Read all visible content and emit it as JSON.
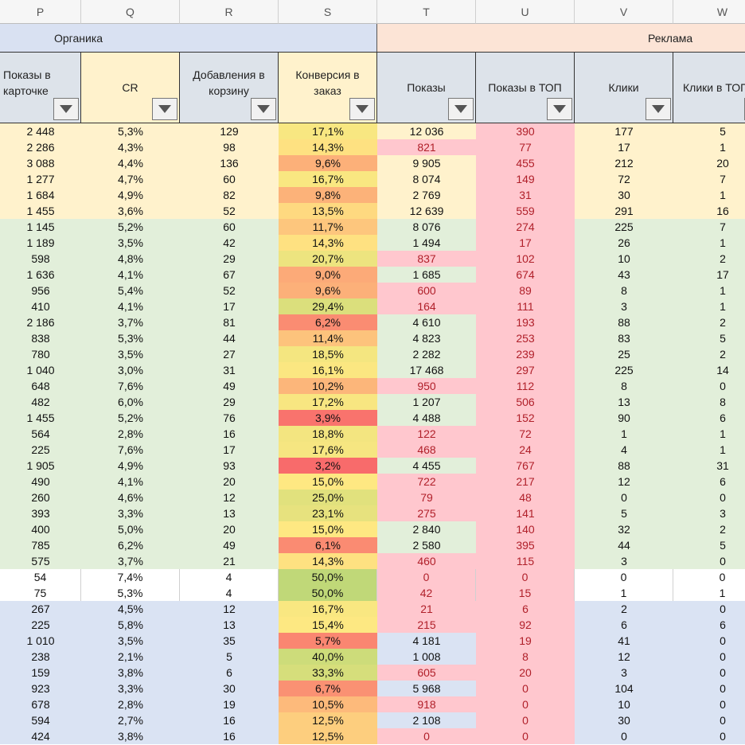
{
  "columns": [
    "P",
    "Q",
    "R",
    "S",
    "T",
    "U",
    "V",
    "W"
  ],
  "groups": [
    {
      "label": "Органика",
      "bg": "#d9e1f2"
    },
    {
      "label": "Реклама",
      "bg": "#fce4d6"
    }
  ],
  "headers": [
    {
      "label": "Показы в карточке",
      "bg": "#dde3ea"
    },
    {
      "label": "CR",
      "bg": "#fff2cc"
    },
    {
      "label": "Добавления в корзину",
      "bg": "#dde3ea"
    },
    {
      "label": "Конверсия в заказ",
      "bg": "#fff2cc"
    },
    {
      "label": "Показы",
      "bg": "#dde3ea"
    },
    {
      "label": "Показы в ТОП",
      "bg": "#dde3ea"
    },
    {
      "label": "Клики",
      "bg": "#dde3ea"
    },
    {
      "label": "Клики в ТОП",
      "bg": "#dde3ea"
    }
  ],
  "palette": {
    "yellow": "#fff2cc",
    "green": "#e2efda",
    "blue": "#dae3f3",
    "white": "#ffffff",
    "pink": "#ffc7ce",
    "neg_text": "#b0202a"
  },
  "rows": [
    {
      "g": "yellow",
      "v": [
        "2 448",
        "5,3%",
        "129",
        "17,1%",
        "12 036",
        "390",
        "177",
        "5"
      ],
      "t": 0,
      "u": 1
    },
    {
      "g": "yellow",
      "v": [
        "2 286",
        "4,3%",
        "98",
        "14,3%",
        "821",
        "77",
        "17",
        "1"
      ],
      "t": 1,
      "u": 1
    },
    {
      "g": "yellow",
      "v": [
        "3 088",
        "4,4%",
        "136",
        "9,6%",
        "9 905",
        "455",
        "212",
        "20"
      ],
      "t": 0,
      "u": 1
    },
    {
      "g": "yellow",
      "v": [
        "1 277",
        "4,7%",
        "60",
        "16,7%",
        "8 074",
        "149",
        "72",
        "7"
      ],
      "t": 0,
      "u": 1
    },
    {
      "g": "yellow",
      "v": [
        "1 684",
        "4,9%",
        "82",
        "9,8%",
        "2 769",
        "31",
        "30",
        "1"
      ],
      "t": 0,
      "u": 1
    },
    {
      "g": "yellow",
      "v": [
        "1 455",
        "3,6%",
        "52",
        "13,5%",
        "12 639",
        "559",
        "291",
        "16"
      ],
      "t": 0,
      "u": 1
    },
    {
      "g": "green",
      "v": [
        "1 145",
        "5,2%",
        "60",
        "11,7%",
        "8 076",
        "274",
        "225",
        "7"
      ],
      "t": 0,
      "u": 1
    },
    {
      "g": "green",
      "v": [
        "1 189",
        "3,5%",
        "42",
        "14,3%",
        "1 494",
        "17",
        "26",
        "1"
      ],
      "t": 0,
      "u": 1
    },
    {
      "g": "green",
      "v": [
        "598",
        "4,8%",
        "29",
        "20,7%",
        "837",
        "102",
        "10",
        "2"
      ],
      "t": 1,
      "u": 1
    },
    {
      "g": "green",
      "v": [
        "1 636",
        "4,1%",
        "67",
        "9,0%",
        "1 685",
        "674",
        "43",
        "17"
      ],
      "t": 0,
      "u": 1
    },
    {
      "g": "green",
      "v": [
        "956",
        "5,4%",
        "52",
        "9,6%",
        "600",
        "89",
        "8",
        "1"
      ],
      "t": 1,
      "u": 1
    },
    {
      "g": "green",
      "v": [
        "410",
        "4,1%",
        "17",
        "29,4%",
        "164",
        "111",
        "3",
        "1"
      ],
      "t": 1,
      "u": 1
    },
    {
      "g": "green",
      "v": [
        "2 186",
        "3,7%",
        "81",
        "6,2%",
        "4 610",
        "193",
        "88",
        "2"
      ],
      "t": 0,
      "u": 1
    },
    {
      "g": "green",
      "v": [
        "838",
        "5,3%",
        "44",
        "11,4%",
        "4 823",
        "253",
        "83",
        "5"
      ],
      "t": 0,
      "u": 1
    },
    {
      "g": "green",
      "v": [
        "780",
        "3,5%",
        "27",
        "18,5%",
        "2 282",
        "239",
        "25",
        "2"
      ],
      "t": 0,
      "u": 1
    },
    {
      "g": "green",
      "v": [
        "1 040",
        "3,0%",
        "31",
        "16,1%",
        "17 468",
        "297",
        "225",
        "14"
      ],
      "t": 0,
      "u": 1
    },
    {
      "g": "green",
      "v": [
        "648",
        "7,6%",
        "49",
        "10,2%",
        "950",
        "112",
        "8",
        "0"
      ],
      "t": 1,
      "u": 1
    },
    {
      "g": "green",
      "v": [
        "482",
        "6,0%",
        "29",
        "17,2%",
        "1 207",
        "506",
        "13",
        "8"
      ],
      "t": 0,
      "u": 1
    },
    {
      "g": "green",
      "v": [
        "1 455",
        "5,2%",
        "76",
        "3,9%",
        "4 488",
        "152",
        "90",
        "6"
      ],
      "t": 0,
      "u": 1
    },
    {
      "g": "green",
      "v": [
        "564",
        "2,8%",
        "16",
        "18,8%",
        "122",
        "72",
        "1",
        "1"
      ],
      "t": 1,
      "u": 1
    },
    {
      "g": "green",
      "v": [
        "225",
        "7,6%",
        "17",
        "17,6%",
        "468",
        "24",
        "4",
        "1"
      ],
      "t": 1,
      "u": 1
    },
    {
      "g": "green",
      "v": [
        "1 905",
        "4,9%",
        "93",
        "3,2%",
        "4 455",
        "767",
        "88",
        "31"
      ],
      "t": 0,
      "u": 1
    },
    {
      "g": "green",
      "v": [
        "490",
        "4,1%",
        "20",
        "15,0%",
        "722",
        "217",
        "12",
        "6"
      ],
      "t": 1,
      "u": 1
    },
    {
      "g": "green",
      "v": [
        "260",
        "4,6%",
        "12",
        "25,0%",
        "79",
        "48",
        "0",
        "0"
      ],
      "t": 1,
      "u": 1
    },
    {
      "g": "green",
      "v": [
        "393",
        "3,3%",
        "13",
        "23,1%",
        "275",
        "141",
        "5",
        "3"
      ],
      "t": 1,
      "u": 1
    },
    {
      "g": "green",
      "v": [
        "400",
        "5,0%",
        "20",
        "15,0%",
        "2 840",
        "140",
        "32",
        "2"
      ],
      "t": 0,
      "u": 1
    },
    {
      "g": "green",
      "v": [
        "785",
        "6,2%",
        "49",
        "6,1%",
        "2 580",
        "395",
        "44",
        "5"
      ],
      "t": 0,
      "u": 1
    },
    {
      "g": "green",
      "v": [
        "575",
        "3,7%",
        "21",
        "14,3%",
        "460",
        "115",
        "3",
        "0"
      ],
      "t": 1,
      "u": 1
    },
    {
      "g": "white",
      "v": [
        "54",
        "7,4%",
        "4",
        "50,0%",
        "0",
        "0",
        "0",
        "0"
      ],
      "t": 1,
      "u": 1
    },
    {
      "g": "white",
      "v": [
        "75",
        "5,3%",
        "4",
        "50,0%",
        "42",
        "15",
        "1",
        "1"
      ],
      "t": 1,
      "u": 1
    },
    {
      "g": "blue",
      "v": [
        "267",
        "4,5%",
        "12",
        "16,7%",
        "21",
        "6",
        "2",
        "0"
      ],
      "t": 1,
      "u": 1
    },
    {
      "g": "blue",
      "v": [
        "225",
        "5,8%",
        "13",
        "15,4%",
        "215",
        "92",
        "6",
        "6"
      ],
      "t": 1,
      "u": 1
    },
    {
      "g": "blue",
      "v": [
        "1 010",
        "3,5%",
        "35",
        "5,7%",
        "4 181",
        "19",
        "41",
        "0"
      ],
      "t": 0,
      "u": 1
    },
    {
      "g": "blue",
      "v": [
        "238",
        "2,1%",
        "5",
        "40,0%",
        "1 008",
        "8",
        "12",
        "0"
      ],
      "t": 0,
      "u": 1
    },
    {
      "g": "blue",
      "v": [
        "159",
        "3,8%",
        "6",
        "33,3%",
        "605",
        "20",
        "3",
        "0"
      ],
      "t": 1,
      "u": 1
    },
    {
      "g": "blue",
      "v": [
        "923",
        "3,3%",
        "30",
        "6,7%",
        "5 968",
        "0",
        "104",
        "0"
      ],
      "t": 0,
      "u": 1
    },
    {
      "g": "blue",
      "v": [
        "678",
        "2,8%",
        "19",
        "10,5%",
        "918",
        "0",
        "10",
        "0"
      ],
      "t": 1,
      "u": 1
    },
    {
      "g": "blue",
      "v": [
        "594",
        "2,7%",
        "16",
        "12,5%",
        "2 108",
        "0",
        "30",
        "0"
      ],
      "t": 0,
      "u": 1
    },
    {
      "g": "blue",
      "v": [
        "424",
        "3,8%",
        "16",
        "12,5%",
        "0",
        "0",
        "0",
        "0"
      ],
      "t": 1,
      "u": 1
    }
  ]
}
